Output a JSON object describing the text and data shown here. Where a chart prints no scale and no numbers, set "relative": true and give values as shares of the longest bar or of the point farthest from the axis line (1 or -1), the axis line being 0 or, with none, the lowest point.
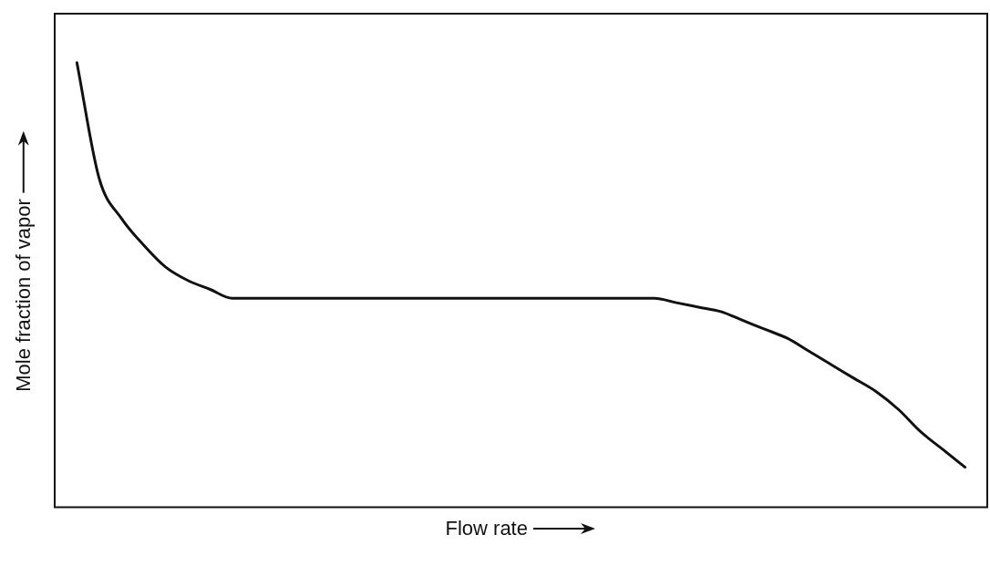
{
  "chart_data": {
    "type": "line",
    "relative": true,
    "xlabel": "Flow rate",
    "ylabel": "Mole fraction of vapor",
    "legend": false,
    "grid": false,
    "marker": "none",
    "line_style": "solid",
    "categories": [
      null,
      null,
      null,
      null,
      null,
      null,
      null,
      null,
      null,
      null,
      null,
      null,
      null,
      null,
      null,
      null,
      null,
      null,
      null,
      null,
      null,
      null,
      null,
      null,
      null,
      null,
      null,
      null,
      null,
      null,
      null,
      null,
      null,
      null,
      null,
      null,
      null,
      null,
      null,
      null,
      null,
      null,
      null
    ],
    "series": [
      {
        "color": "#111111",
        "values": [
          null,
          1.0,
          0.74,
          0.65,
          0.59,
          0.54,
          0.51,
          0.49,
          0.47,
          0.47,
          0.47,
          0.47,
          0.47,
          0.47,
          0.47,
          0.47,
          0.47,
          0.47,
          0.47,
          0.47,
          0.47,
          0.47,
          0.47,
          0.47,
          0.47,
          0.47,
          0.47,
          0.47,
          0.46,
          0.45,
          0.44,
          0.42,
          0.4,
          0.38,
          0.35,
          0.32,
          0.29,
          0.26,
          0.22,
          0.17,
          0.13,
          0.09,
          null
        ]
      }
    ]
  }
}
